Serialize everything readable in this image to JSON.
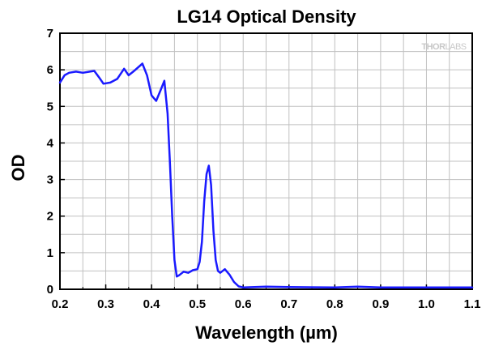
{
  "chart_data": {
    "type": "line",
    "title": "LG14 Optical Density",
    "xlabel": "Wavelength (µm)",
    "ylabel": "OD",
    "xlim": [
      0.2,
      1.1
    ],
    "ylim": [
      0,
      7
    ],
    "xticks": [
      "0.2",
      "0.3",
      "0.4",
      "0.5",
      "0.6",
      "0.7",
      "0.8",
      "0.9",
      "1.0",
      "1.1"
    ],
    "yticks": [
      "0",
      "1",
      "2",
      "3",
      "4",
      "5",
      "6",
      "7"
    ],
    "grid": true,
    "series": [
      {
        "name": "LG14",
        "color": "#1a1aff",
        "x": [
          0.2,
          0.21,
          0.22,
          0.235,
          0.25,
          0.265,
          0.275,
          0.285,
          0.295,
          0.31,
          0.325,
          0.34,
          0.35,
          0.36,
          0.38,
          0.39,
          0.4,
          0.41,
          0.42,
          0.428,
          0.435,
          0.44,
          0.445,
          0.45,
          0.455,
          0.46,
          0.47,
          0.48,
          0.49,
          0.5,
          0.505,
          0.51,
          0.515,
          0.52,
          0.525,
          0.53,
          0.535,
          0.54,
          0.545,
          0.55,
          0.56,
          0.57,
          0.58,
          0.59,
          0.6,
          0.65,
          0.7,
          0.8,
          0.85,
          0.9,
          1.0,
          1.1
        ],
        "y": [
          5.65,
          5.85,
          5.92,
          5.95,
          5.92,
          5.95,
          5.97,
          5.8,
          5.62,
          5.65,
          5.75,
          6.03,
          5.85,
          5.95,
          6.17,
          5.85,
          5.3,
          5.15,
          5.45,
          5.7,
          4.8,
          3.5,
          2.0,
          0.8,
          0.35,
          0.38,
          0.48,
          0.45,
          0.52,
          0.55,
          0.75,
          1.3,
          2.4,
          3.15,
          3.38,
          2.85,
          1.6,
          0.8,
          0.5,
          0.45,
          0.55,
          0.4,
          0.2,
          0.08,
          0.05,
          0.07,
          0.06,
          0.05,
          0.07,
          0.05,
          0.05,
          0.05
        ]
      }
    ],
    "watermark": {
      "text_a": "THOR",
      "text_b": "LABS"
    },
    "colors": {
      "frame": "#000000",
      "grid": "#c0c0c0",
      "background": "#ffffff"
    }
  }
}
